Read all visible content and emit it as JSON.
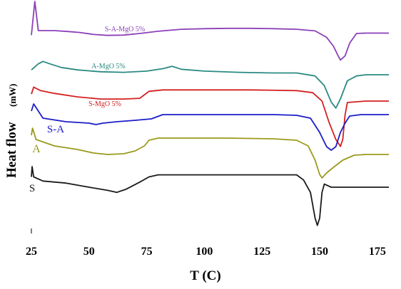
{
  "chart_data": {
    "type": "line",
    "title": "",
    "xlabel": "T (C)",
    "ylabel": "Heat flow",
    "ylabel_unit": "(mW)",
    "xlim": [
      25,
      180
    ],
    "xticks": [
      25,
      50,
      75,
      100,
      125,
      150,
      175
    ],
    "y_ticks_shown": false,
    "grid": false,
    "legend": "none (labels placed on curves)",
    "series": [
      {
        "name": "S-A-MgO 5%",
        "color": "#8b3fb8",
        "label_size": 10,
        "points": [
          [
            25,
            -5
          ],
          [
            26.5,
            100
          ],
          [
            28,
            9
          ],
          [
            35,
            9
          ],
          [
            41,
            6
          ],
          [
            46,
            3
          ],
          [
            52,
            -3
          ],
          [
            58,
            -6
          ],
          [
            65,
            -5
          ],
          [
            72,
            0
          ],
          [
            80,
            7
          ],
          [
            90,
            13
          ],
          [
            100,
            15
          ],
          [
            110,
            16
          ],
          [
            120,
            16
          ],
          [
            130,
            15
          ],
          [
            140,
            13
          ],
          [
            148,
            8
          ],
          [
            153,
            -12
          ],
          [
            156,
            -40
          ],
          [
            158,
            -70
          ],
          [
            159,
            -83
          ],
          [
            161,
            -70
          ],
          [
            163,
            -30
          ],
          [
            166,
            0
          ],
          [
            170,
            1
          ],
          [
            175,
            1
          ],
          [
            180,
            1
          ]
        ]
      },
      {
        "name": "A-MgO 5%",
        "color": "#2a8a82",
        "label_size": 10,
        "points": [
          [
            25,
            8
          ],
          [
            28,
            18
          ],
          [
            30,
            22
          ],
          [
            33,
            18
          ],
          [
            38,
            12
          ],
          [
            45,
            8
          ],
          [
            55,
            5
          ],
          [
            65,
            4
          ],
          [
            75,
            6
          ],
          [
            82,
            10
          ],
          [
            86,
            14
          ],
          [
            90,
            9
          ],
          [
            100,
            6
          ],
          [
            115,
            4
          ],
          [
            130,
            3
          ],
          [
            140,
            3
          ],
          [
            148,
            -2
          ],
          [
            152,
            -18
          ],
          [
            155,
            -45
          ],
          [
            157,
            -55
          ],
          [
            159,
            -40
          ],
          [
            162,
            -10
          ],
          [
            166,
            -2
          ],
          [
            170,
            0
          ],
          [
            175,
            0
          ],
          [
            180,
            0
          ]
        ]
      },
      {
        "name": "S-MgO 5%",
        "color": "#d32020",
        "label_size": 10,
        "points": [
          [
            25,
            10
          ],
          [
            26,
            20
          ],
          [
            29,
            15
          ],
          [
            35,
            11
          ],
          [
            45,
            6
          ],
          [
            55,
            3
          ],
          [
            65,
            3
          ],
          [
            72,
            4
          ],
          [
            76,
            14
          ],
          [
            82,
            16
          ],
          [
            90,
            16
          ],
          [
            100,
            16
          ],
          [
            120,
            16
          ],
          [
            140,
            15
          ],
          [
            147,
            12
          ],
          [
            151,
            0
          ],
          [
            154,
            -30
          ],
          [
            157,
            -55
          ],
          [
            159,
            -65
          ],
          [
            160,
            -55
          ],
          [
            161,
            -20
          ],
          [
            162,
            -2
          ],
          [
            166,
            -1
          ],
          [
            170,
            0
          ],
          [
            175,
            0
          ],
          [
            180,
            0
          ]
        ]
      },
      {
        "name": "S-A",
        "color": "#1c1cc8",
        "label_size": 15,
        "points": [
          [
            25,
            15
          ],
          [
            26,
            25
          ],
          [
            30,
            5
          ],
          [
            40,
            0
          ],
          [
            50,
            -2
          ],
          [
            53,
            -4
          ],
          [
            56,
            -2
          ],
          [
            62,
            0
          ],
          [
            70,
            2
          ],
          [
            77,
            4
          ],
          [
            82,
            10
          ],
          [
            90,
            10
          ],
          [
            110,
            10
          ],
          [
            130,
            10
          ],
          [
            140,
            9
          ],
          [
            146,
            5
          ],
          [
            150,
            -15
          ],
          [
            153,
            -35
          ],
          [
            155,
            -40
          ],
          [
            157,
            -35
          ],
          [
            159,
            -15
          ],
          [
            161,
            -2
          ],
          [
            163,
            8
          ],
          [
            168,
            10
          ],
          [
            172,
            10
          ],
          [
            180,
            10
          ]
        ]
      },
      {
        "name": "A",
        "color": "#9a9a1e",
        "label_size": 16,
        "points": [
          [
            25,
            40
          ],
          [
            25.5,
            50
          ],
          [
            27,
            34
          ],
          [
            35,
            25
          ],
          [
            45,
            20
          ],
          [
            52,
            15
          ],
          [
            58,
            13
          ],
          [
            65,
            14
          ],
          [
            70,
            18
          ],
          [
            74,
            25
          ],
          [
            76,
            33
          ],
          [
            80,
            36
          ],
          [
            90,
            36
          ],
          [
            110,
            36
          ],
          [
            130,
            35
          ],
          [
            140,
            33
          ],
          [
            145,
            25
          ],
          [
            148,
            5
          ],
          [
            150,
            -15
          ],
          [
            151,
            -20
          ],
          [
            153,
            -13
          ],
          [
            156,
            -5
          ],
          [
            160,
            5
          ],
          [
            165,
            12
          ],
          [
            170,
            13
          ],
          [
            175,
            13
          ],
          [
            180,
            13
          ]
        ]
      },
      {
        "name": "S",
        "color": "#1a1a1a",
        "label_size": 15,
        "points": [
          [
            25,
            10
          ],
          [
            25.3,
            20
          ],
          [
            26,
            10
          ],
          [
            30,
            6
          ],
          [
            40,
            4
          ],
          [
            50,
            0
          ],
          [
            58,
            -3
          ],
          [
            62,
            -5
          ],
          [
            66,
            -2
          ],
          [
            72,
            5
          ],
          [
            76,
            10
          ],
          [
            80,
            12
          ],
          [
            90,
            12
          ],
          [
            110,
            12
          ],
          [
            130,
            12
          ],
          [
            140,
            12
          ],
          [
            143,
            7
          ],
          [
            146,
            -5
          ],
          [
            148,
            -30
          ],
          [
            149,
            -37
          ],
          [
            150,
            -30
          ],
          [
            151,
            -5
          ],
          [
            152,
            3
          ],
          [
            155,
            0
          ],
          [
            160,
            0
          ],
          [
            170,
            0
          ],
          [
            180,
            0
          ]
        ]
      }
    ]
  }
}
